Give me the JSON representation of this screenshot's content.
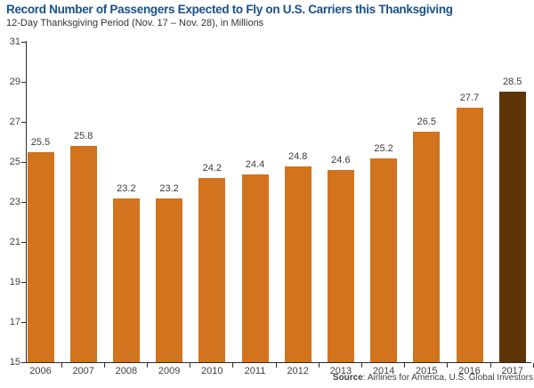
{
  "chart_data": {
    "type": "bar",
    "title": "Record Number of Passengers Expected to Fly on U.S. Carriers this Thanksgiving",
    "subtitle": "12-Day Thanksgiving Period (Nov. 17 – Nov. 28), in Millions",
    "categories": [
      "2006",
      "2007",
      "2008",
      "2009",
      "2010",
      "2011",
      "2012",
      "2013",
      "2014",
      "2015",
      "2016",
      "2017"
    ],
    "values": [
      25.5,
      25.8,
      23.2,
      23.2,
      24.2,
      24.4,
      24.8,
      24.6,
      25.2,
      26.5,
      27.7,
      28.5
    ],
    "value_labels": [
      "25.5",
      "25.8",
      "23.2",
      "23.2",
      "24.2",
      "24.4",
      "24.8",
      "24.6",
      "25.2",
      "26.5",
      "27.7",
      "28.5"
    ],
    "xlabel": "",
    "ylabel": "",
    "ylim": [
      15,
      31
    ],
    "yticks": [
      15,
      17,
      19,
      21,
      23,
      25,
      27,
      29,
      31
    ],
    "grid": false,
    "legend": "none",
    "highlight_index": 11,
    "colors": {
      "bar": "#D2731E",
      "highlight": "#5F3406",
      "title": "#1A5186",
      "axis": "#2b2b2b"
    },
    "source_label": "Source",
    "source_rest": ": Airlines for America, U.S. Global Investors"
  }
}
